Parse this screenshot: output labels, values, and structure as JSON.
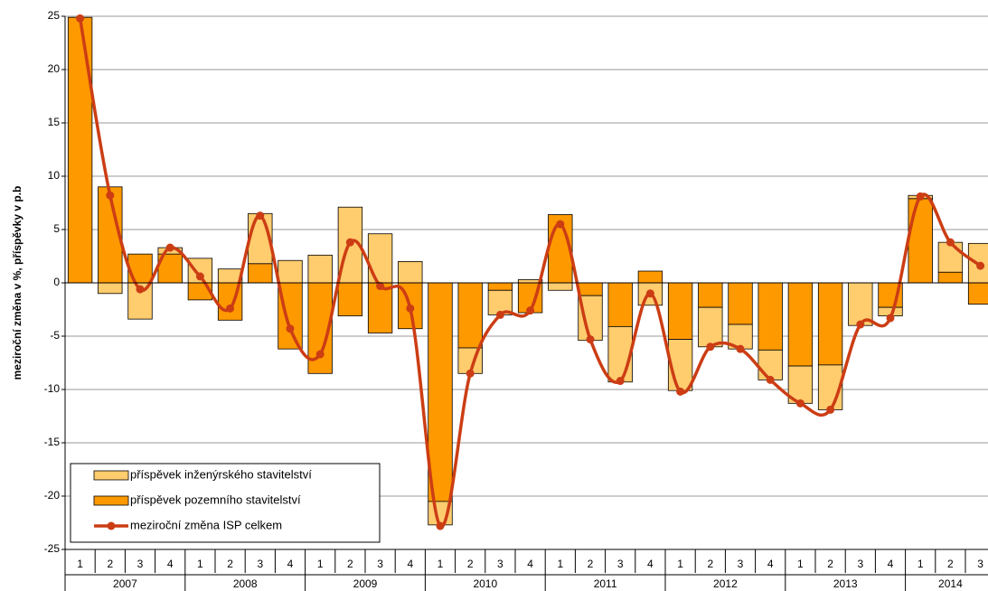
{
  "chart_data": {
    "type": "bar",
    "stacked": true,
    "grid": true,
    "y_label": "meziroční změna v %, příspěvky v p.b",
    "groups": [
      {
        "name": "2007",
        "categories": [
          "1",
          "2",
          "3",
          "4"
        ]
      },
      {
        "name": "2008",
        "categories": [
          "1",
          "2",
          "3",
          "4"
        ]
      },
      {
        "name": "2009",
        "categories": [
          "1",
          "2",
          "3",
          "4"
        ]
      },
      {
        "name": "2010",
        "categories": [
          "1",
          "2",
          "3",
          "4"
        ]
      },
      {
        "name": "2011",
        "categories": [
          "1",
          "2",
          "3",
          "4"
        ]
      },
      {
        "name": "2012",
        "categories": [
          "1",
          "2",
          "3",
          "4"
        ]
      },
      {
        "name": "2013",
        "categories": [
          "1",
          "2",
          "3",
          "4"
        ]
      },
      {
        "name": "2014",
        "categories": [
          "1",
          "2",
          "3"
        ]
      }
    ],
    "ylim": [
      -25,
      25
    ],
    "yticks": [
      -25,
      -20,
      -15,
      -10,
      -5,
      0,
      5,
      10,
      15,
      20,
      25
    ],
    "legend": "bottom-left",
    "series": [
      {
        "name": "příspěvek pozemního stavitelství",
        "type": "bar",
        "color": "#ff9900",
        "values": [
          24.9,
          9.0,
          2.7,
          2.7,
          -1.6,
          -3.5,
          1.8,
          -6.2,
          -8.5,
          -3.1,
          -4.7,
          -4.3,
          -20.5,
          -6.1,
          -0.7,
          -2.8,
          6.4,
          -1.2,
          -4.1,
          1.1,
          -5.3,
          -2.3,
          -3.9,
          -6.3,
          -7.8,
          -7.7,
          0,
          -2.3,
          7.9,
          1.0,
          -2.0
        ]
      },
      {
        "name": "příspěvek inženýrského stavitelství",
        "type": "bar",
        "color": "#ffcc6e",
        "values": [
          0,
          -1.0,
          -3.4,
          0.6,
          2.3,
          1.3,
          4.7,
          2.1,
          2.6,
          7.1,
          4.6,
          2.0,
          -2.2,
          -2.4,
          -2.3,
          0.3,
          -0.7,
          -4.2,
          -5.2,
          -2.1,
          -4.8,
          -3.7,
          -2.3,
          -2.8,
          -3.5,
          -4.2,
          -4.0,
          -0.8,
          0.3,
          2.8,
          3.7
        ]
      },
      {
        "name": "meziroční změna ISP celkem",
        "type": "line",
        "color": "#cc3d14",
        "values": [
          24.8,
          8.2,
          -0.6,
          3.3,
          0.6,
          -2.4,
          6.3,
          -4.3,
          -6.7,
          3.8,
          -0.3,
          -2.4,
          -22.8,
          -8.5,
          -3.0,
          -2.6,
          5.5,
          -5.3,
          -9.2,
          -1.0,
          -10.2,
          -6.0,
          -6.2,
          -9.1,
          -11.3,
          -11.9,
          -3.9,
          -3.3,
          8.1,
          3.8,
          1.6
        ]
      }
    ]
  }
}
